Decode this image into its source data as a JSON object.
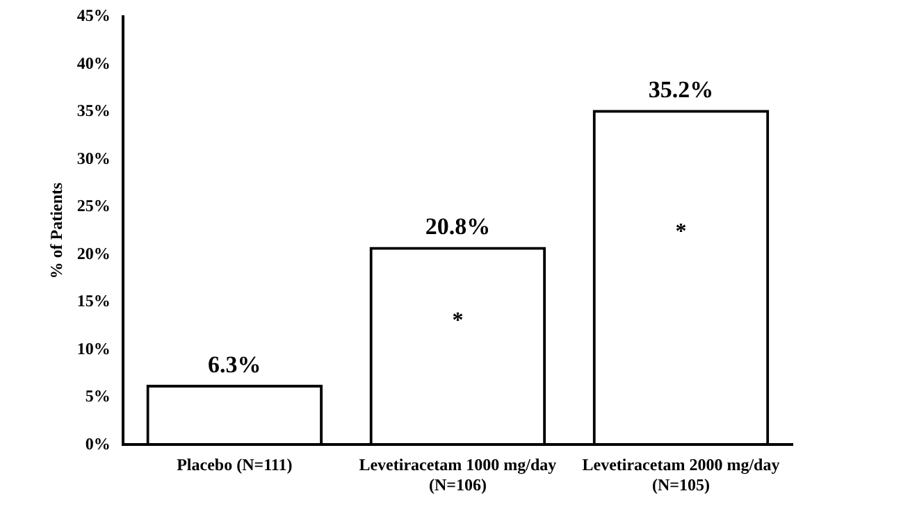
{
  "chart_data": {
    "type": "bar",
    "ylabel": "% of Patients",
    "categories": [
      "Placebo (N=111)",
      "Levetiracetam 1000 mg/day (N=106)",
      "Levetiracetam 2000 mg/day (N=105)"
    ],
    "values": [
      6.3,
      20.8,
      35.2
    ],
    "color": "#000000",
    "value_labels": [
      "6.3%",
      "20.8%",
      "35.2%"
    ],
    "ylim": [
      0,
      45
    ],
    "yticks": [
      {
        "value": 0,
        "label": "0%"
      },
      {
        "value": 5,
        "label": "5%"
      },
      {
        "value": 10,
        "label": "10%"
      },
      {
        "value": 15,
        "label": "15%"
      },
      {
        "value": 20,
        "label": "20%"
      },
      {
        "value": 25,
        "label": "25%"
      },
      {
        "value": 30,
        "label": "30%"
      },
      {
        "value": 35,
        "label": "35%"
      },
      {
        "value": 40,
        "label": "40%"
      },
      {
        "value": 45,
        "label": "45%"
      }
    ],
    "annotations": [
      "*",
      "*"
    ],
    "grid": false,
    "legend": false
  }
}
